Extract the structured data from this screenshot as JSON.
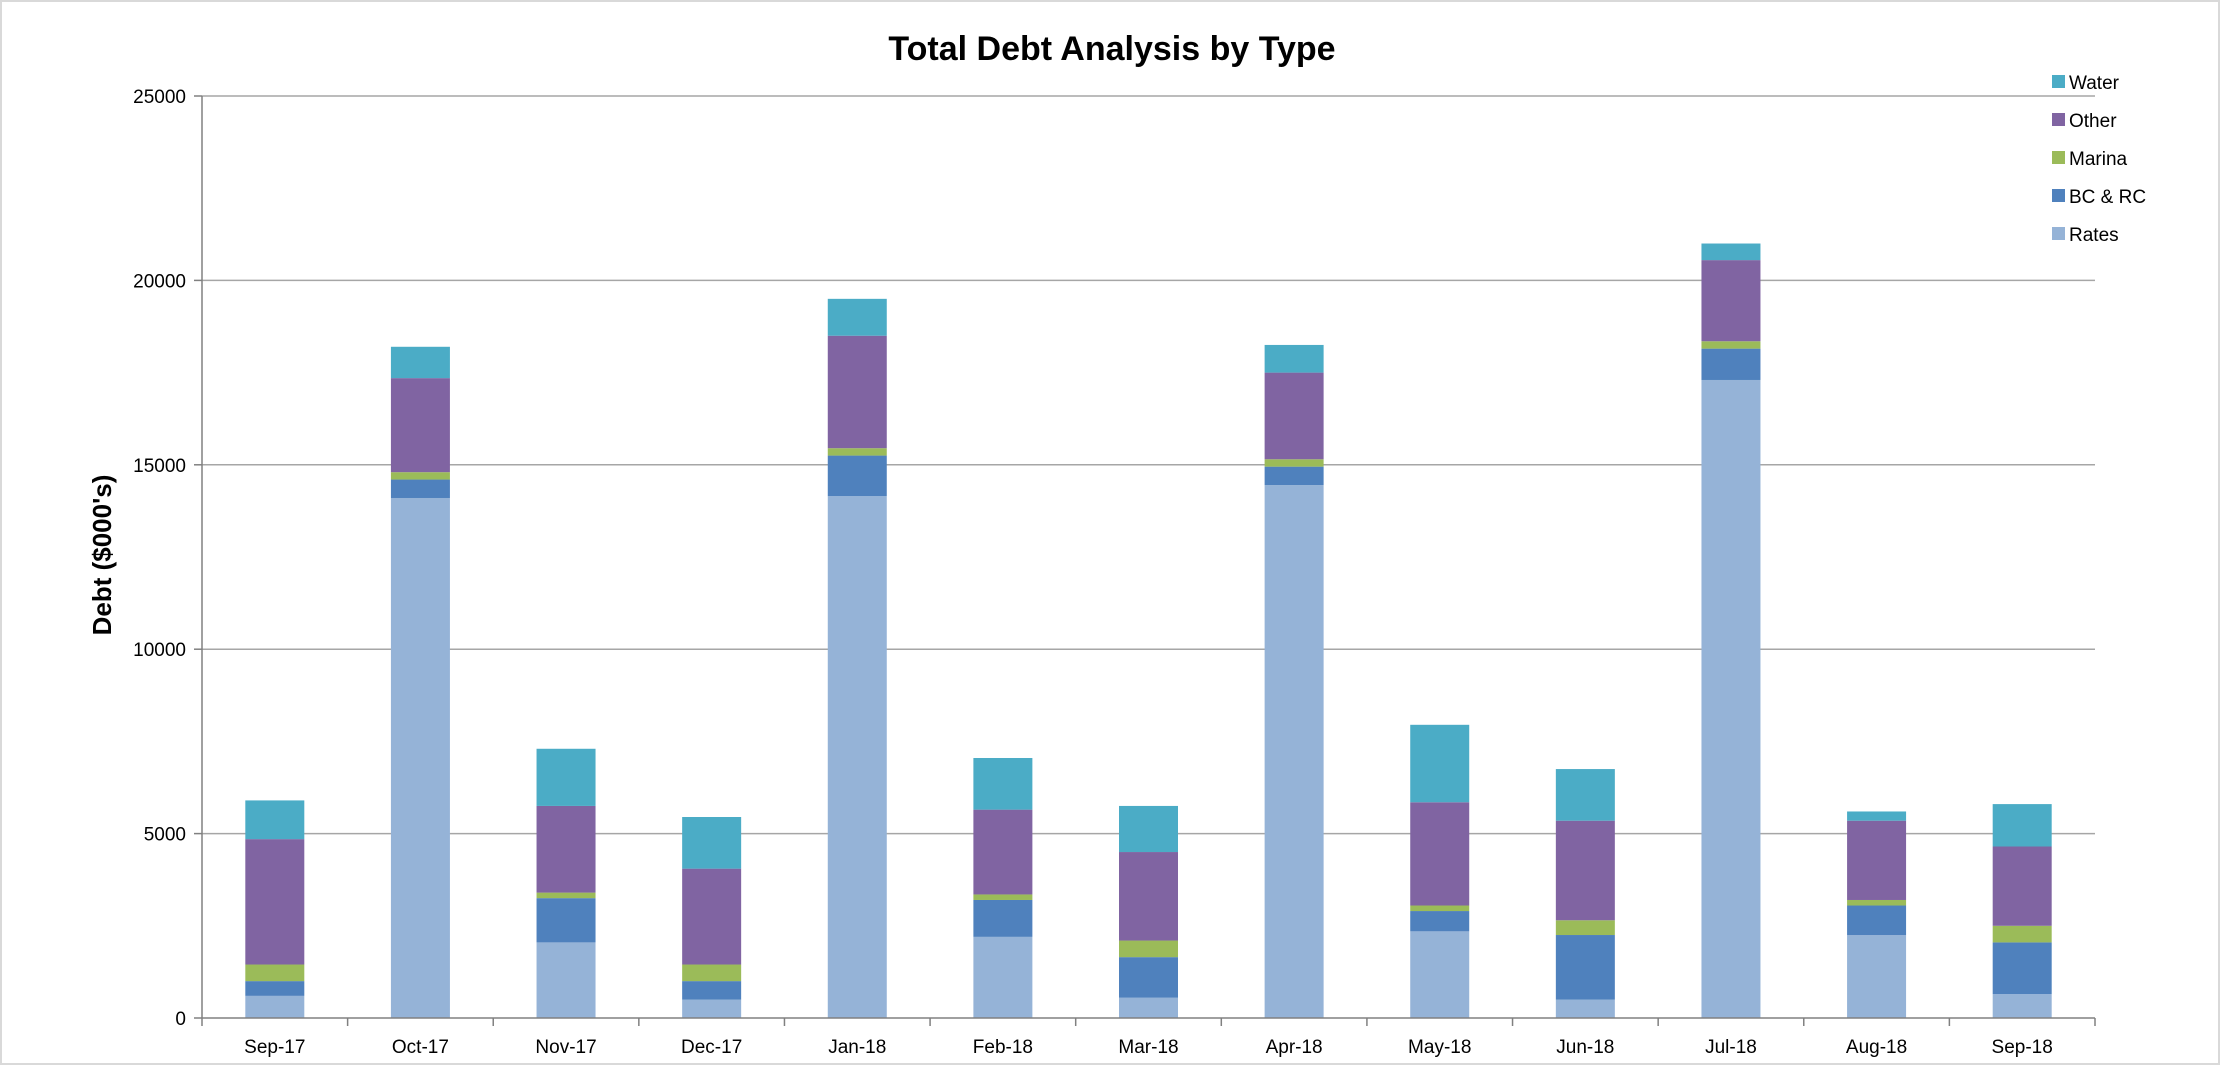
{
  "chart_data": {
    "type": "bar",
    "stacked": true,
    "title": "Total Debt Analysis by Type",
    "xlabel": "",
    "ylabel": "Debt ($000's)",
    "ylim": [
      0,
      25000
    ],
    "yticks": [
      0,
      5000,
      10000,
      15000,
      20000,
      25000
    ],
    "grid": true,
    "legend_position": "top-right",
    "categories": [
      "Sep-17",
      "Oct-17",
      "Nov-17",
      "Dec-17",
      "Jan-18",
      "Feb-18",
      "Mar-18",
      "Apr-18",
      "May-18",
      "Jun-18",
      "Jul-18",
      "Aug-18",
      "Sep-18"
    ],
    "series": [
      {
        "name": "Rates",
        "color": "#95b3d7",
        "values": [
          600,
          14100,
          2050,
          500,
          14150,
          2200,
          550,
          14450,
          2350,
          500,
          17300,
          2250,
          650
        ]
      },
      {
        "name": "BC & RC",
        "color": "#4f81bd",
        "values": [
          400,
          500,
          1200,
          500,
          1100,
          1000,
          1100,
          500,
          550,
          1750,
          850,
          800,
          1400
        ]
      },
      {
        "name": "Marina",
        "color": "#9bbb59",
        "values": [
          450,
          200,
          150,
          450,
          200,
          150,
          450,
          200,
          150,
          400,
          200,
          150,
          450
        ]
      },
      {
        "name": "Other",
        "color": "#8064a2",
        "values": [
          3400,
          2550,
          2350,
          2600,
          3050,
          2300,
          2400,
          2350,
          2800,
          2700,
          2200,
          2150,
          2150
        ]
      },
      {
        "name": "Water",
        "color": "#4bacc6",
        "values": [
          1050,
          850,
          1550,
          1400,
          1000,
          1400,
          1250,
          750,
          2100,
          1400,
          450,
          250,
          1150
        ]
      }
    ]
  }
}
